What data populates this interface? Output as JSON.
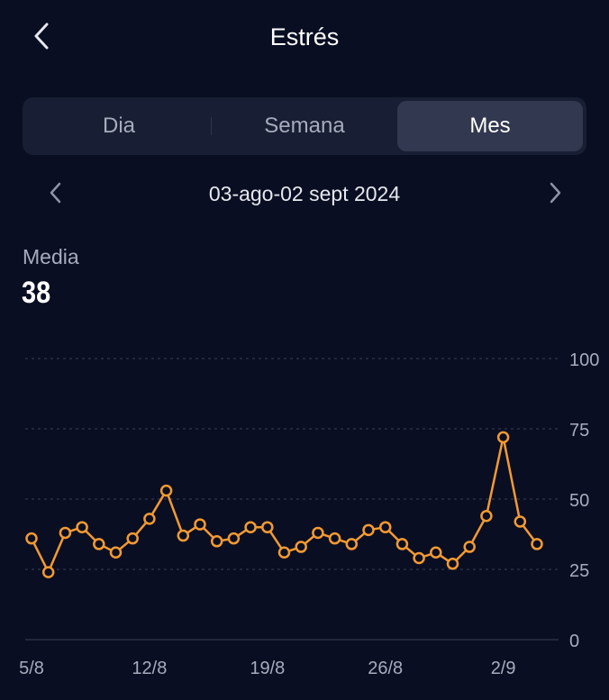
{
  "header": {
    "title": "Estrés",
    "back_icon": "chevron-left-icon"
  },
  "tabs": [
    {
      "label": "Dia",
      "selected": false
    },
    {
      "label": "Semana",
      "selected": false
    },
    {
      "label": "Mes",
      "selected": true
    }
  ],
  "range": {
    "label": "03-ago-02 sept 2024",
    "prev_icon": "chevron-left-icon",
    "next_icon": "chevron-right-icon"
  },
  "summary": {
    "label": "Media",
    "value": "38"
  },
  "colors": {
    "background": "#0a0e22",
    "line": "#f39a32",
    "grid": "#3a4058",
    "text_secondary": "#a7acbd"
  },
  "chart_data": {
    "type": "line",
    "title": "",
    "xlabel": "",
    "ylabel": "",
    "ylim": [
      0,
      100
    ],
    "y_ticks": [
      0,
      25,
      50,
      75,
      100
    ],
    "grid": true,
    "x_tick_labels": [
      {
        "day": 3,
        "label": "5/8"
      },
      {
        "day": 10,
        "label": "12/8"
      },
      {
        "day": 17,
        "label": "19/8"
      },
      {
        "day": 24,
        "label": "26/8"
      },
      {
        "day": 31,
        "label": "2/9"
      }
    ],
    "x": [
      "3/8",
      "4/8",
      "5/8",
      "6/8",
      "7/8",
      "8/8",
      "9/8",
      "10/8",
      "11/8",
      "12/8",
      "13/8",
      "14/8",
      "15/8",
      "16/8",
      "17/8",
      "18/8",
      "19/8",
      "20/8",
      "21/8",
      "22/8",
      "23/8",
      "24/8",
      "25/8",
      "26/8",
      "27/8",
      "28/8",
      "29/8",
      "30/8",
      "31/8",
      "1/9",
      "2/9"
    ],
    "values": [
      36,
      24,
      38,
      40,
      34,
      31,
      36,
      43,
      53,
      37,
      41,
      35,
      36,
      40,
      40,
      31,
      33,
      38,
      36,
      34,
      39,
      40,
      34,
      29,
      31,
      27,
      33,
      44,
      72,
      42,
      34
    ]
  }
}
